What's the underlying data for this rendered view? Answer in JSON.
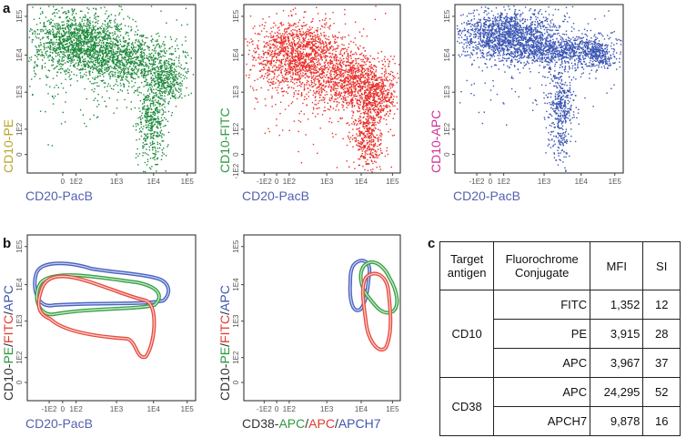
{
  "panel_labels": [
    "a",
    "b",
    "c"
  ],
  "plots": [
    {
      "y_label": [
        {
          "text": "CD10-PE",
          "color": "#b9a52a"
        }
      ],
      "x_label": [
        {
          "text": "CD20-PacB",
          "color": "#5561b0"
        }
      ],
      "yticks": [
        "1E5",
        "1E4",
        "1E3",
        "1E2",
        "0"
      ],
      "xticks": [
        "0",
        "1E2",
        "1E3",
        "1E4",
        "1E5"
      ],
      "color": "#1e8a3c"
    },
    {
      "y_label": [
        {
          "text": "CD10-FITC",
          "color": "#2e9a3e"
        }
      ],
      "x_label": [
        {
          "text": "CD20-PacB",
          "color": "#5561b0"
        }
      ],
      "yticks": [
        "1E5",
        "1E4",
        "1E3",
        "1E2",
        "0",
        "-1E2"
      ],
      "xticks": [
        "-1E2",
        "0",
        "1E2",
        "1E3",
        "1E4",
        "1E5"
      ],
      "color": "#e8302a"
    },
    {
      "y_label": [
        {
          "text": "CD10-APC",
          "color": "#d0309a"
        }
      ],
      "x_label": [
        {
          "text": "CD20-PacB",
          "color": "#5561b0"
        }
      ],
      "yticks": [
        "1E5",
        "1E4",
        "1E3",
        "1E2",
        "0"
      ],
      "xticks": [
        "-1E2",
        "0",
        "1E2",
        "1E3",
        "1E4",
        "1E5"
      ],
      "color": "#3a55b4"
    },
    {
      "y_label": [
        {
          "text": "CD10-",
          "color": "#333333"
        },
        {
          "text": "PE",
          "color": "#2e9a3e"
        },
        {
          "text": "/",
          "color": "#333333"
        },
        {
          "text": "FITC",
          "color": "#e03a30"
        },
        {
          "text": "/",
          "color": "#333333"
        },
        {
          "text": "APC",
          "color": "#4055b0"
        }
      ],
      "x_label": [
        {
          "text": "CD20-PacB",
          "color": "#5561b0"
        }
      ],
      "yticks": [
        "1E5",
        "1E4",
        "1E3",
        "1E2",
        "0"
      ],
      "xticks": [
        "-1E2",
        "0",
        "1E2",
        "1E3",
        "1E4",
        "1E5"
      ]
    },
    {
      "y_label": [
        {
          "text": "CD10-",
          "color": "#333333"
        },
        {
          "text": "PE",
          "color": "#2e9a3e"
        },
        {
          "text": "/",
          "color": "#333333"
        },
        {
          "text": "FITC",
          "color": "#e03a30"
        },
        {
          "text": "/",
          "color": "#333333"
        },
        {
          "text": "APC",
          "color": "#4055b0"
        }
      ],
      "x_label": [
        {
          "text": "CD38-",
          "color": "#333333"
        },
        {
          "text": "APC",
          "color": "#2e9a3e"
        },
        {
          "text": "/",
          "color": "#333333"
        },
        {
          "text": "APC",
          "color": "#e03a30"
        },
        {
          "text": "/",
          "color": "#333333"
        },
        {
          "text": "APCH7",
          "color": "#4055b0"
        }
      ],
      "yticks": [
        "1E5",
        "1E4",
        "1E3",
        "1E2",
        "0"
      ],
      "xticks": [
        "-1E2",
        "0",
        "1E2",
        "1E3",
        "1E4",
        "1E5"
      ]
    }
  ],
  "table": {
    "header": [
      "Target antigen",
      "Fluorochrome Conjugate",
      "MFI",
      "SI"
    ],
    "groups": [
      {
        "antigen": "CD10",
        "rows": [
          [
            "FITC",
            "1,352",
            "12"
          ],
          [
            "PE",
            "3,915",
            "28"
          ],
          [
            "APC",
            "3,967",
            "37"
          ]
        ]
      },
      {
        "antigen": "CD38",
        "rows": [
          [
            "APC",
            "24,295",
            "52"
          ],
          [
            "APCH7",
            "9,878",
            "16"
          ]
        ]
      }
    ]
  }
}
